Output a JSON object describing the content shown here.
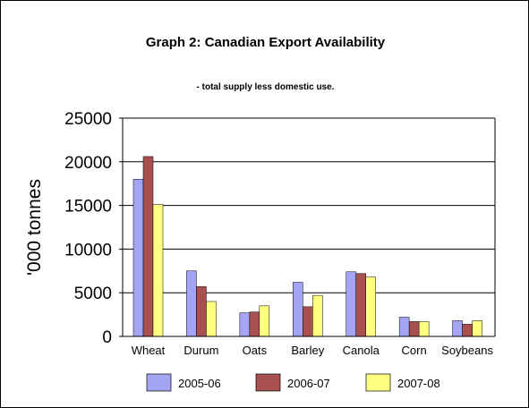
{
  "chart_data": {
    "type": "bar",
    "title": "Graph 2: Canadian Export Availability",
    "subtitle": "- total supply less domestic use.",
    "ylabel": "'000 tonnes",
    "xlabel": "",
    "ylim": [
      0,
      25000
    ],
    "yticks": [
      0,
      5000,
      10000,
      15000,
      20000,
      25000
    ],
    "grid": true,
    "legend_position": "bottom",
    "categories": [
      "Wheat",
      "Durum",
      "Oats",
      "Barley",
      "Canola",
      "Corn",
      "Soybeans"
    ],
    "series": [
      {
        "name": "2005-06",
        "color": "#a4a4f4",
        "values": [
          18000,
          7500,
          2700,
          6200,
          7400,
          2200,
          1800
        ]
      },
      {
        "name": "2006-07",
        "color": "#a85050",
        "values": [
          20600,
          5700,
          2800,
          3400,
          7200,
          1700,
          1400
        ]
      },
      {
        "name": "2007-08",
        "color": "#ffff80",
        "values": [
          15100,
          4000,
          3500,
          4700,
          6800,
          1700,
          1800
        ]
      }
    ]
  }
}
